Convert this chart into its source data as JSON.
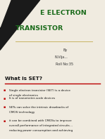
{
  "slide1_bg": "#f0ebe0",
  "slide2_bg": "#f0efe8",
  "title_line1": "E ELECTRON",
  "title_line2": "TRANSISTOR",
  "title_color": "#1a6b1a",
  "dark_triangle_color": "#1a1a1a",
  "by_text": "By",
  "name_text": "N.Vija...",
  "roll_text": "Roll No:35",
  "slide2_title": "What is SET?",
  "slide2_title_color": "#111111",
  "underline_color": "#bb0000",
  "bullet_color": "#bb0000",
  "bullet_text_color": "#111111",
  "bullets": [
    "Single electron transistor (SET) is a device\nof single electronics",
    "It is of nanometer-scale devices",
    "SETs can solve the intrinsic drawbacks of\nCMOS technology",
    "it can be combined with CMOSs to improve\noverall performance of integrated circuits --\nreducing power consumption and achieving"
  ],
  "separator_color": "#c8b464",
  "slide_divider": 0.485
}
